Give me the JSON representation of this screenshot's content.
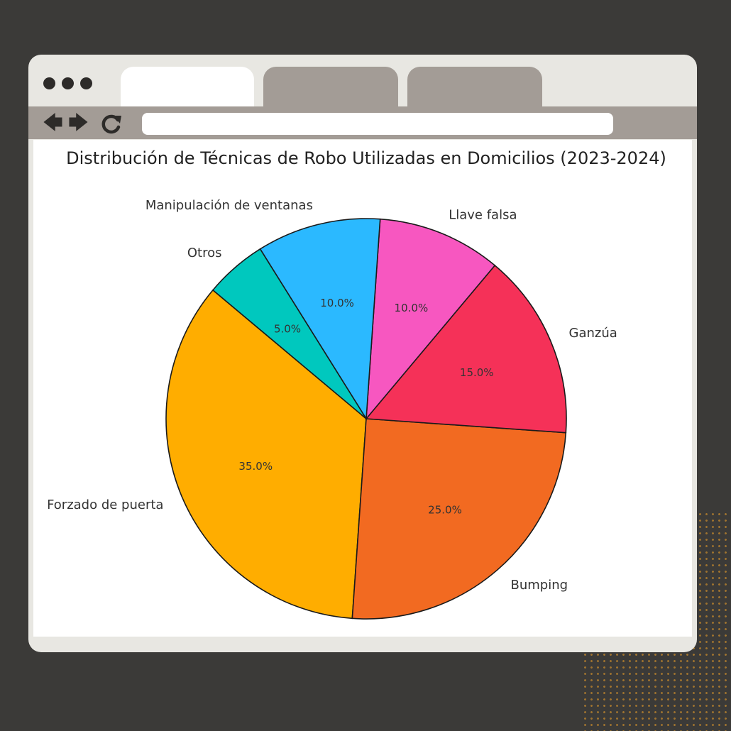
{
  "browser": {
    "tabs": [
      "",
      "",
      ""
    ],
    "url": ""
  },
  "icons": [
    "back-arrow-icon",
    "forward-arrow-icon",
    "reload-icon"
  ],
  "chart_data": {
    "type": "pie",
    "title": "Distribución de Técnicas de Robo Utilizadas en Domicilios (2023-2024)",
    "categories": [
      "Forzado de puerta",
      "Bumping",
      "Ganzúa",
      "Llave falsa",
      "Manipulación de ventanas",
      "Otros"
    ],
    "values": [
      35,
      25,
      15,
      10,
      10,
      5
    ],
    "value_labels": [
      "35.0%",
      "25.0%",
      "15.0%",
      "10.0%",
      "10.0%",
      "5.0%"
    ],
    "colors": [
      "#FFAD00",
      "#F26A21",
      "#F53158",
      "#F757C0",
      "#2BB9FF",
      "#00C8BE"
    ],
    "start_angle_deg": 140,
    "direction": "counterclockwise",
    "legend": "none"
  }
}
